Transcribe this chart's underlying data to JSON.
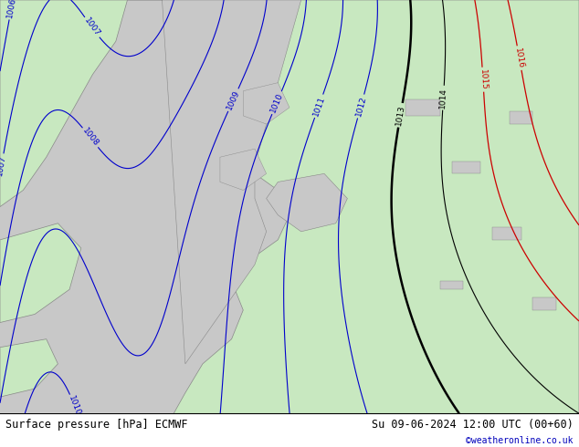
{
  "title_left": "Surface pressure [hPa] ECMWF",
  "title_right": "Su 09-06-2024 12:00 UTC (00+60)",
  "credit": "©weatheronline.co.uk",
  "land_color": "#c8e8c0",
  "sea_color": "#c8c8c8",
  "blue_color": "#0000cc",
  "red_color": "#cc0000",
  "black_color": "#000000",
  "coast_color": "#888888",
  "figsize": [
    6.34,
    4.9
  ],
  "dpi": 100
}
